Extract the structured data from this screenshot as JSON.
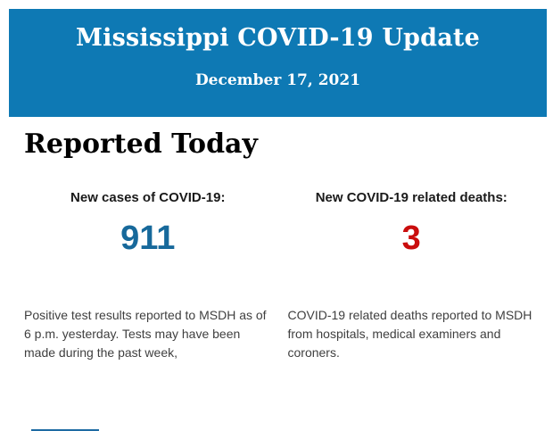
{
  "header": {
    "title": "Mississippi COVID-19 Update",
    "date": "December 17, 2021"
  },
  "section": {
    "title": "Reported Today"
  },
  "stats": [
    {
      "label": "New cases of COVID-19:",
      "value": "911",
      "description": "Positive test results reported to MSDH as of 6 p.m. yesterday. Tests may have been made during the past week,"
    },
    {
      "label": "New COVID-19 related deaths:",
      "value": "3",
      "description": "COVID-19 related deaths reported to MSDH from hospitals, medical examiners and coroners."
    }
  ],
  "colors": {
    "banner_blue": "#0e79b4",
    "cases_blue": "#17699b",
    "deaths_red": "#ca0d0d",
    "body_text": "#3f3f3f",
    "footer_logo_blue": "#1d6ba3"
  }
}
